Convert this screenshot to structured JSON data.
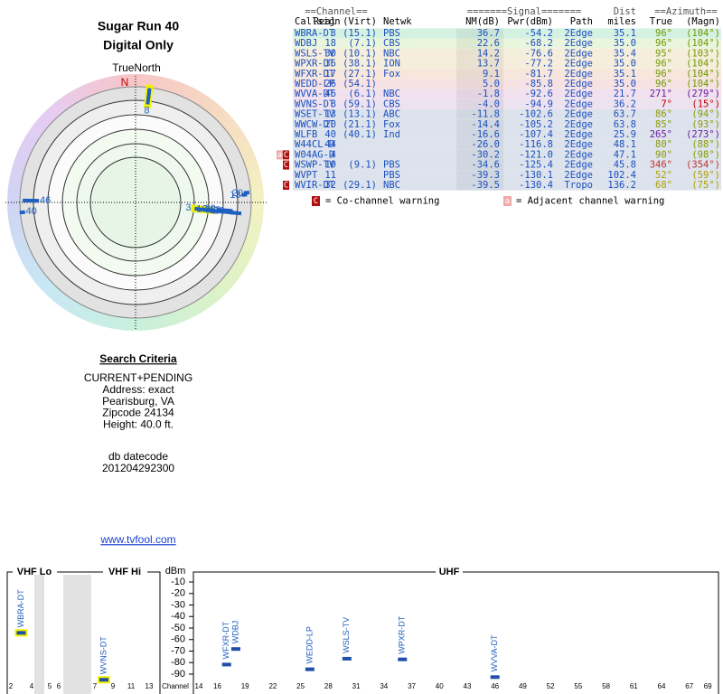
{
  "header": {
    "title": "Sugar Run 40",
    "subtitle": "Digital Only"
  },
  "polar": {
    "north_label": "TrueNorth",
    "north_mark": "N",
    "markers": [
      {
        "label": "8",
        "azimuth": 7,
        "nm": -4.0,
        "outline": "#f2f200"
      },
      {
        "label": "46",
        "azimuth": 271,
        "nm": -1.8
      },
      {
        "label": "40",
        "azimuth": 265,
        "nm": -16.6
      },
      {
        "label": "13",
        "azimuth": 86,
        "nm": -11.8
      },
      {
        "label": "20",
        "azimuth": 85,
        "nm": -14.4
      },
      {
        "label": "3",
        "azimuth": 96,
        "nm": 36.7,
        "outline": "#f2f200"
      },
      {
        "label": "18",
        "azimuth": 96,
        "nm": 22.6
      },
      {
        "label": "30",
        "azimuth": 95,
        "nm": 14.2
      },
      {
        "label": "36",
        "azimuth": 96,
        "nm": 13.7
      },
      {
        "label": "17",
        "azimuth": 96,
        "nm": 9.1
      },
      {
        "label": "26",
        "azimuth": 96,
        "nm": 5.0
      }
    ]
  },
  "table": {
    "group_headers": [
      "==Channel==",
      "=======Signal=======",
      "Dist",
      "==Azimuth=="
    ],
    "columns": [
      "Callsign",
      "Real",
      "(Virt)",
      "Netwk",
      "NM(dB)",
      "Pwr(dBm)",
      "Path",
      "miles",
      "True",
      "(Magn)"
    ],
    "rows": [
      {
        "cells": [
          "WBRA-DT",
          "3",
          "(15.1)",
          "PBS",
          "36.7",
          "-54.2",
          "2Edge",
          "35.1",
          "96°",
          "(104°)"
        ],
        "row_color": "#d4f1e2",
        "az_color": "#6f9a00"
      },
      {
        "cells": [
          "WDBJ",
          "18",
          "(7.1)",
          "CBS",
          "22.6",
          "-68.2",
          "2Edge",
          "35.0",
          "96°",
          "(104°)"
        ],
        "row_color": "#e9f5dc",
        "az_color": "#6f9a00"
      },
      {
        "cells": [
          "WSLS-TV",
          "30",
          "(10.1)",
          "NBC",
          "14.2",
          "-76.6",
          "2Edge",
          "35.4",
          "95°",
          "(103°)"
        ],
        "row_color": "#f6eedc",
        "az_color": "#6f9a00"
      },
      {
        "cells": [
          "WPXR-DT",
          "36",
          "(38.1)",
          "ION",
          "13.7",
          "-77.2",
          "2Edge",
          "35.0",
          "96°",
          "(104°)"
        ],
        "row_color": "#f6eedc",
        "az_color": "#6f9a00"
      },
      {
        "cells": [
          "WFXR-DT",
          "17",
          "(27.1)",
          "Fox",
          "9.1",
          "-81.7",
          "2Edge",
          "35.1",
          "96°",
          "(104°)"
        ],
        "row_color": "#f6e6dc",
        "az_color": "#6f9a00"
      },
      {
        "cells": [
          "WEDD-LP",
          "26",
          "(54.1)",
          null,
          "5.0",
          "-85.8",
          "2Edge",
          "35.0",
          "96°",
          "(104°)"
        ],
        "row_color": "#f6e2e2",
        "az_color": "#6f9a00"
      },
      {
        "cells": [
          "WVVA-DT",
          "46",
          "(6.1)",
          "NBC",
          "-1.8",
          "-92.6",
          "2Edge",
          "21.7",
          "271°",
          "(279°)"
        ],
        "row_color": "#f1e0ee",
        "az_color": "#6a1aa0"
      },
      {
        "cells": [
          "WVNS-DT",
          "8",
          "(59.1)",
          "CBS",
          "-4.0",
          "-94.9",
          "2Edge",
          "36.2",
          "7°",
          "(15°)"
        ],
        "row_color": "#ece2f0",
        "az_color": "#c00000"
      },
      {
        "cells": [
          "WSET-TV",
          "13",
          "(13.1)",
          "ABC",
          "-11.8",
          "-102.6",
          "2Edge",
          "63.7",
          "86°",
          "(94°)"
        ],
        "row_color": "#dde3ec",
        "az_color": "#8a9a00"
      },
      {
        "cells": [
          "WWCW-DT",
          "20",
          "(21.1)",
          "Fox",
          "-14.4",
          "-105.2",
          "2Edge",
          "63.8",
          "85°",
          "(93°)"
        ],
        "row_color": "#dde3ec",
        "az_color": "#8a9a00"
      },
      {
        "cells": [
          "WLFB",
          "40",
          "(40.1)",
          "Ind",
          "-16.6",
          "-107.4",
          "2Edge",
          "25.9",
          "265°",
          "(273°)"
        ],
        "row_color": "#dde3ec",
        "az_color": "#6a1aa0"
      },
      {
        "cells": [
          "W44CL-D",
          "44",
          null,
          null,
          "-26.0",
          "-116.8",
          "2Edge",
          "48.1",
          "80°",
          "(88°)"
        ],
        "row_color": "#dde3ec",
        "az_color": "#8a9a00"
      },
      {
        "cells": [
          "W04AG-D",
          "4",
          null,
          null,
          "-30.2",
          "-121.0",
          "2Edge",
          "47.1",
          "90°",
          "(98°)"
        ],
        "row_color": "#dde3ec",
        "az_color": "#8a9a00",
        "warnings": [
          "a",
          "C"
        ]
      },
      {
        "cells": [
          "WSWP-TV",
          "10",
          "(9.1)",
          "PBS",
          "-34.6",
          "-125.4",
          "2Edge",
          "45.8",
          "346°",
          "(354°)"
        ],
        "row_color": "#dde3ec",
        "az_color": "#c03030",
        "warnings": [
          "C"
        ]
      },
      {
        "cells": [
          "WVPT",
          "11",
          null,
          "PBS",
          "-39.3",
          "-130.1",
          "2Edge",
          "102.4",
          "52°",
          "(59°)"
        ],
        "row_color": "#dde3ec",
        "az_color": "#b0a000"
      },
      {
        "cells": [
          "WVIR-DT",
          "32",
          "(29.1)",
          "NBC",
          "-39.5",
          "-130.4",
          "Tropo",
          "136.2",
          "68°",
          "(75°)"
        ],
        "row_color": "#dde3ec",
        "az_color": "#b0a000",
        "warnings": [
          "C"
        ]
      }
    ]
  },
  "legend": {
    "cochannel_icon": "C",
    "cochannel": "= Co-channel warning",
    "adjacent_icon": "a",
    "adjacent": "= Adjacent channel warning"
  },
  "search": {
    "title": "Search Criteria",
    "lines": [
      "CURRENT+PENDING",
      "Address: exact",
      "Pearisburg, VA",
      "Zipcode 24134",
      "Height: 40.0 ft."
    ],
    "datecode_label": "db datecode",
    "datecode": "201204292300",
    "link": "www.tvfool.com"
  },
  "spectrum": {
    "vhf_lo": "VHF Lo",
    "vhf_hi": "VHF Hi",
    "uhf": "UHF",
    "y_label": "dBm",
    "x_label": "Channel",
    "ylim": [
      -10,
      -90
    ],
    "yticks": [
      -10,
      -20,
      -30,
      -40,
      -50,
      -60,
      -70,
      -80,
      -90
    ],
    "vhf_channels": [
      2,
      4,
      5,
      6,
      7,
      9,
      11,
      13
    ],
    "uhf_channels": [
      14,
      16,
      19,
      22,
      25,
      28,
      31,
      34,
      37,
      40,
      43,
      46,
      49,
      52,
      55,
      58,
      61,
      64,
      67,
      69
    ],
    "stations": [
      {
        "name": "WBRA-DT",
        "channel": 3,
        "dbm": -54.2,
        "outline": "#f2f200"
      },
      {
        "name": "WVNS-DT",
        "channel": 8,
        "dbm": -94.9,
        "outline": "#f2f200"
      },
      {
        "name": "WFXR-DT",
        "channel": 17,
        "dbm": -81.7
      },
      {
        "name": "WDBJ",
        "channel": 18,
        "dbm": -68.2
      },
      {
        "name": "WEDD-LP",
        "channel": 26,
        "dbm": -85.8
      },
      {
        "name": "WSLS-TV",
        "channel": 30,
        "dbm": -76.6
      },
      {
        "name": "WPXR-DT",
        "channel": 36,
        "dbm": -77.2
      },
      {
        "name": "WVVA-DT",
        "channel": 46,
        "dbm": -92.6
      }
    ]
  }
}
